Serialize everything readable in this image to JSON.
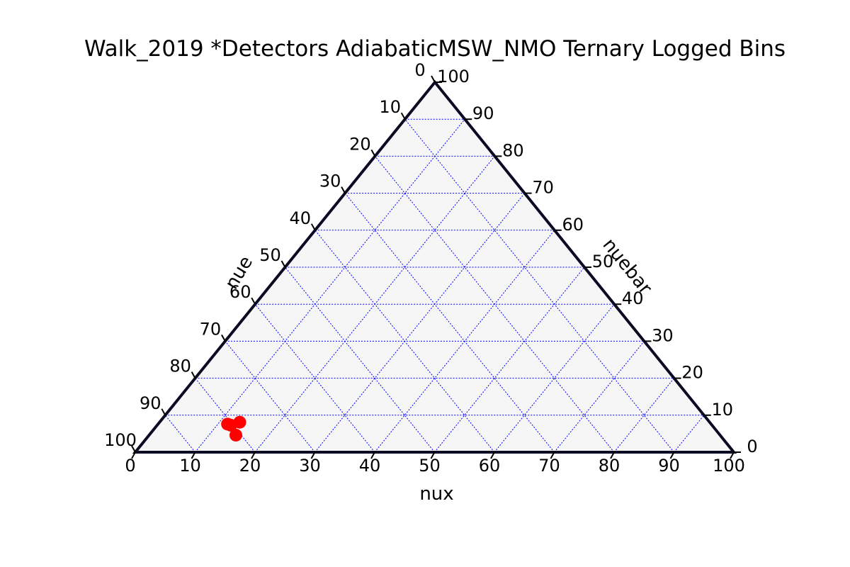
{
  "chart_data": {
    "type": "scatter",
    "subtype": "ternary",
    "title": "Walk_2019 *Detectors AdiabaticMSW_NMO Ternary Logged Bins",
    "axes": {
      "bottom": {
        "label": "nux",
        "ticks": [
          "0",
          "10",
          "20",
          "30",
          "40",
          "50",
          "60",
          "70",
          "80",
          "90",
          "100"
        ]
      },
      "left": {
        "label": "nue",
        "ticks": [
          "0",
          "10",
          "20",
          "30",
          "40",
          "50",
          "60",
          "70",
          "80",
          "90",
          "100"
        ]
      },
      "right": {
        "label": "nuebar",
        "ticks": [
          "0",
          "10",
          "20",
          "30",
          "40",
          "50",
          "60",
          "70",
          "80",
          "90",
          "100"
        ]
      }
    },
    "range": [
      0,
      100
    ],
    "grid": true,
    "points": [
      {
        "nux": 13.4,
        "nue": 78.5,
        "nuebar": 8.1
      },
      {
        "nux": 12.3,
        "nue": 80.4,
        "nuebar": 7.3
      },
      {
        "nux": 11.6,
        "nue": 80.8,
        "nuebar": 7.6
      },
      {
        "nux": 14.5,
        "nue": 80.9,
        "nuebar": 4.6
      }
    ],
    "colors": {
      "points": "#ff0000",
      "grid": "#0000ff",
      "frame": "#0b0b24",
      "background": "#f6f6f6"
    }
  }
}
